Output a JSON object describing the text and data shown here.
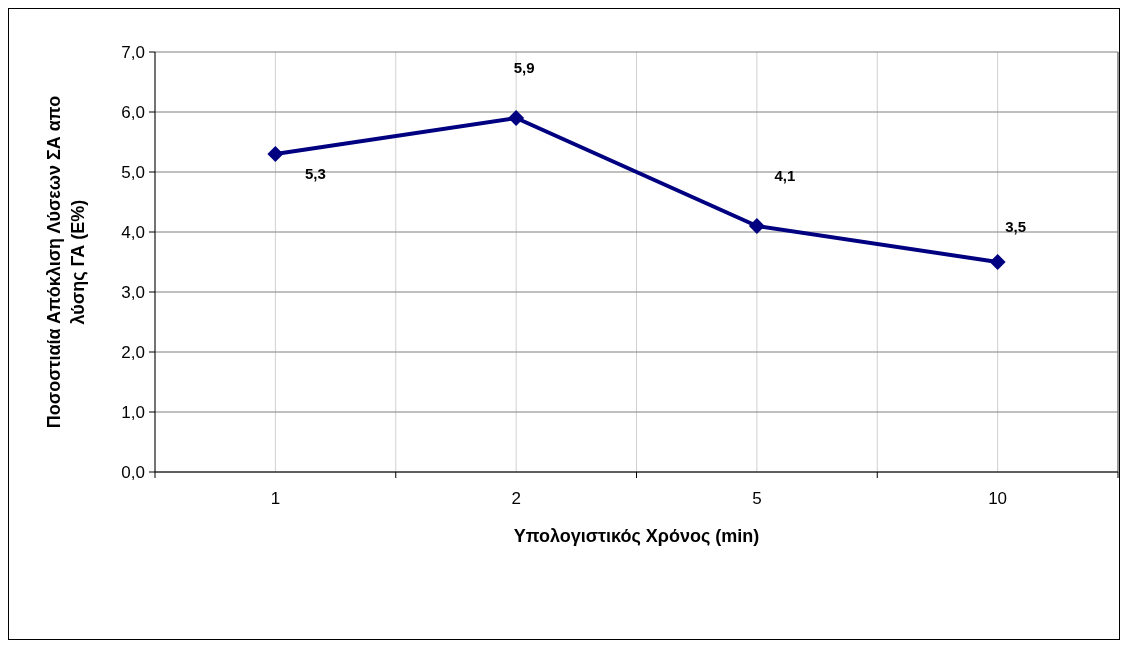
{
  "chart_data": {
    "type": "line",
    "xlabel": "Υπολογιστικός Χρόνος (min)",
    "ylabel": "Ποσοστιαία Απόκλιση Λύσεων ΣΑ απο\nλύσης ΓΑ (Ε%)",
    "categories": [
      "1",
      "2",
      "5",
      "10"
    ],
    "series": [
      {
        "color": "#000080",
        "values": [
          5.3,
          5.9,
          4.1,
          3.5
        ]
      }
    ],
    "value_labels": [
      "5,3",
      "5,9",
      "4,1",
      "3,5"
    ],
    "ylim": [
      0,
      7
    ],
    "yticks": [
      {
        "value": 0,
        "label": "0,0"
      },
      {
        "value": 1,
        "label": "1,0"
      },
      {
        "value": 2,
        "label": "2,0"
      },
      {
        "value": 3,
        "label": "3,0"
      },
      {
        "value": 4,
        "label": "4,0"
      },
      {
        "value": 5,
        "label": "5,0"
      },
      {
        "value": 6,
        "label": "6,0"
      },
      {
        "value": 7,
        "label": "7,0"
      }
    ],
    "grid": true,
    "marker": "diamond",
    "line_style": "solid"
  }
}
